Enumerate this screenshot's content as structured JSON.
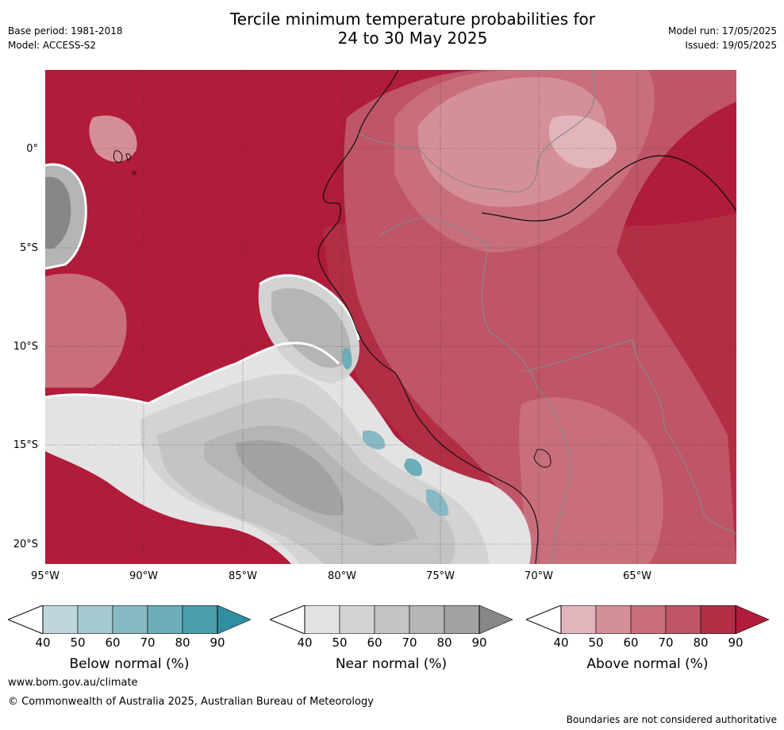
{
  "header": {
    "title_line1": "Tercile minimum temperature probabilities for",
    "title_line2": "24 to 30 May 2025",
    "base_period": "Base period: 1981-2018",
    "model": "Model: ACCESS-S2",
    "model_run": "Model run: 17/05/2025",
    "issued": "Issued: 19/05/2025"
  },
  "map": {
    "lat_labels": [
      "0°",
      "5°S",
      "10°S",
      "15°S",
      "20°S"
    ],
    "lon_labels": [
      "95°W",
      "90°W",
      "85°W",
      "80°W",
      "75°W",
      "70°W",
      "65°W"
    ]
  },
  "legends": [
    {
      "label": "Below normal (%)",
      "ticks": [
        "40",
        "50",
        "60",
        "70",
        "80",
        "90"
      ],
      "colors": [
        "#bcd6dc",
        "#a6c8cf",
        "#88b8c3",
        "#6badb8",
        "#4a9eac",
        "#2f8e9f"
      ]
    },
    {
      "label": "Near normal (%)",
      "ticks": [
        "40",
        "50",
        "60",
        "70",
        "80",
        "90"
      ],
      "colors": [
        "#e3e3e3",
        "#d3d3d3",
        "#c4c4c4",
        "#b5b5b5",
        "#a2a2a2",
        "#878787"
      ]
    },
    {
      "label": "Above normal (%)",
      "ticks": [
        "40",
        "50",
        "60",
        "70",
        "80",
        "90"
      ],
      "colors": [
        "#e2b5bc",
        "#d58f99",
        "#c86f7b",
        "#bf5566",
        "#b22e45",
        "#b01c3a"
      ]
    }
  ],
  "footer": {
    "url": "www.bom.gov.au/climate",
    "copyright": "© Commonwealth of Australia 2025, Australian Bureau of Meteorology",
    "disclaimer": "Boundaries are not considered authoritative"
  }
}
